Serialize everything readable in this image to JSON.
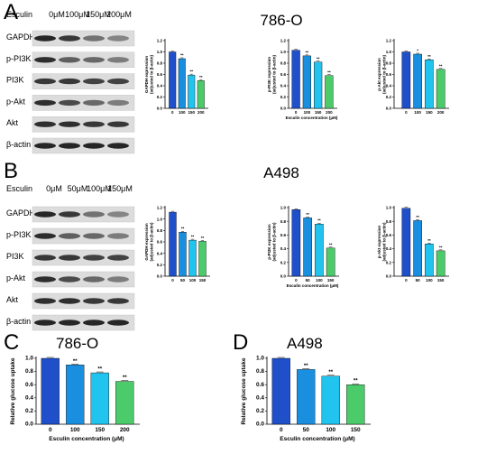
{
  "colors": [
    "#1f4fc9",
    "#1a8fe0",
    "#21c4ee",
    "#4ccb6b"
  ],
  "panels": {
    "A": {
      "letter": "A",
      "cell_line": "786-O"
    },
    "B": {
      "letter": "B",
      "cell_line": "A498"
    },
    "C": {
      "letter": "C",
      "cell_line": "786-O"
    },
    "D": {
      "letter": "D",
      "cell_line": "A498"
    }
  },
  "western_blots": [
    {
      "treatment_label": "Esculin",
      "lanes": [
        "0μM",
        "100μM",
        "150μM",
        "200μM"
      ],
      "rows": [
        "GAPDH",
        "p-PI3K",
        "PI3K",
        "p-Akt",
        "Akt",
        "β-actin"
      ]
    },
    {
      "treatment_label": "Esculin",
      "lanes": [
        "0μM",
        "50μM",
        "100μM",
        "150μM"
      ],
      "rows": [
        "GAPDH",
        "p-PI3K",
        "PI3K",
        "p-Akt",
        "Akt",
        "β-actin"
      ]
    }
  ],
  "chart_data": [
    {
      "panel": "A",
      "type": "bar",
      "categories": [
        "0",
        "100",
        "150",
        "200"
      ],
      "values": [
        1.0,
        0.88,
        0.59,
        0.49
      ],
      "significance": [
        "",
        "**",
        "**",
        "**"
      ],
      "ylim": [
        0,
        1.2
      ],
      "yticks": [
        "0.0",
        "0.2",
        "0.4",
        "0.6",
        "0.8",
        "1.0",
        "1.2"
      ],
      "ylabel": [
        "GAPDH expression",
        "(adjusted to β-actin)"
      ],
      "xlabel": "",
      "grid": false
    },
    {
      "panel": "A",
      "type": "bar",
      "categories": [
        "0",
        "100",
        "150",
        "200"
      ],
      "values": [
        1.03,
        0.93,
        0.82,
        0.58
      ],
      "significance": [
        "",
        "**",
        "**",
        "**"
      ],
      "ylim": [
        0,
        1.2
      ],
      "yticks": [
        "0.0",
        "0.2",
        "0.4",
        "0.6",
        "0.8",
        "1.0",
        "1.2"
      ],
      "ylabel": [
        "p-PI3K expression",
        "(adjusted to β-actin)"
      ],
      "xlabel": "Esculin concentration (μM)",
      "grid": false
    },
    {
      "panel": "A",
      "type": "bar",
      "categories": [
        "0",
        "100",
        "150",
        "200"
      ],
      "values": [
        1.0,
        0.96,
        0.86,
        0.69
      ],
      "significance": [
        "",
        "*",
        "**",
        "**"
      ],
      "ylim": [
        0,
        1.2
      ],
      "yticks": [
        "0.0",
        "0.2",
        "0.4",
        "0.6",
        "0.8",
        "1.0",
        "1.2"
      ],
      "ylabel": [
        "p-Akt expression",
        "(adjusted to β-actin)"
      ],
      "xlabel": "",
      "grid": false
    },
    {
      "panel": "B",
      "type": "bar",
      "categories": [
        "0",
        "50",
        "100",
        "150"
      ],
      "values": [
        1.12,
        0.77,
        0.63,
        0.61
      ],
      "significance": [
        "",
        "**",
        "**",
        "**"
      ],
      "ylim": [
        0,
        1.2
      ],
      "yticks": [
        "0.0",
        "0.2",
        "0.4",
        "0.6",
        "0.8",
        "1.0",
        "1.2"
      ],
      "ylabel": [
        "GAPDH expression",
        "(adjusted to β-actin)"
      ],
      "xlabel": "",
      "grid": false
    },
    {
      "panel": "B",
      "type": "bar",
      "categories": [
        "0",
        "50",
        "100",
        "150"
      ],
      "values": [
        0.97,
        0.85,
        0.76,
        0.41
      ],
      "significance": [
        "",
        "**",
        "**",
        "**"
      ],
      "ylim": [
        0,
        1.0
      ],
      "yticks": [
        "0.0",
        "0.2",
        "0.4",
        "0.6",
        "0.8",
        "1.0"
      ],
      "ylabel": [
        "p-PI3K expression",
        "(adjusted to β-actin)"
      ],
      "xlabel": "Esculin concentration (μM)",
      "grid": false
    },
    {
      "panel": "B",
      "type": "bar",
      "categories": [
        "0",
        "50",
        "100",
        "150"
      ],
      "values": [
        0.99,
        0.81,
        0.47,
        0.37
      ],
      "significance": [
        "",
        "**",
        "**",
        "**"
      ],
      "ylim": [
        0,
        1.0
      ],
      "yticks": [
        "0.0",
        "0.2",
        "0.4",
        "0.6",
        "0.8",
        "1.0"
      ],
      "ylabel": [
        "p-Akt expression",
        "(adjusted to β-actin)"
      ],
      "xlabel": "",
      "grid": false
    },
    {
      "panel": "C",
      "type": "bar",
      "categories": [
        "0",
        "100",
        "150",
        "200"
      ],
      "values": [
        1.0,
        0.9,
        0.78,
        0.65
      ],
      "significance": [
        "",
        "**",
        "**",
        "**"
      ],
      "ylim": [
        0,
        1.0
      ],
      "yticks": [
        "0.0",
        "0.2",
        "0.4",
        "0.6",
        "0.8",
        "1.0"
      ],
      "ylabel": [
        "Relative glucose uptake"
      ],
      "xlabel": "Esculin concentration (μM)",
      "grid": false
    },
    {
      "panel": "D",
      "type": "bar",
      "categories": [
        "0",
        "50",
        "100",
        "150"
      ],
      "values": [
        1.0,
        0.83,
        0.73,
        0.6
      ],
      "significance": [
        "",
        "**",
        "**",
        "**"
      ],
      "ylim": [
        0,
        1.0
      ],
      "yticks": [
        "0.0",
        "0.2",
        "0.4",
        "0.6",
        "0.8",
        "1.0"
      ],
      "ylabel": [
        "Relative glucose uptake"
      ],
      "xlabel": "Esculin concentration (μM)",
      "grid": false
    }
  ]
}
